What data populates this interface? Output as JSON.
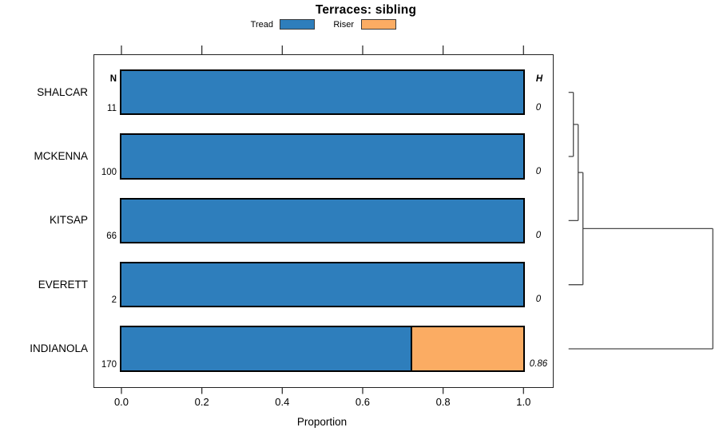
{
  "title": "Terraces: sibling",
  "legend": {
    "items": [
      {
        "label": "Tread",
        "color": "#2E7EBC"
      },
      {
        "label": "Riser",
        "color": "#FBAC63"
      }
    ]
  },
  "columns": {
    "n_header": "N",
    "h_header": "H"
  },
  "xlabel": "Proportion",
  "chart_data": {
    "type": "bar",
    "orientation": "horizontal",
    "stacked": true,
    "title": "Terraces: sibling",
    "xlabel": "Proportion",
    "xlim": [
      0,
      1
    ],
    "xticks": [
      0,
      0.2,
      0.4,
      0.6,
      0.8,
      1.0
    ],
    "xtick_labels": [
      "0.0",
      "0.2",
      "0.4",
      "0.6",
      "0.8",
      "1.0"
    ],
    "grid": false,
    "legend_position": "top",
    "categories": [
      "SHALCAR",
      "MCKENNA",
      "KITSAP",
      "EVERETT",
      "INDIANOLA"
    ],
    "n_values": [
      11,
      100,
      66,
      2,
      170
    ],
    "h_values": [
      "0",
      "0",
      "0",
      "0",
      "0.86"
    ],
    "series": [
      {
        "name": "Tread",
        "color": "#2E7EBC",
        "values": [
          1.0,
          1.0,
          1.0,
          1.0,
          0.72
        ]
      },
      {
        "name": "Riser",
        "color": "#FBAC63",
        "values": [
          0.0,
          0.0,
          0.0,
          0.0,
          0.28
        ]
      }
    ],
    "dendrogram": {
      "leaf_order": [
        "SHALCAR",
        "MCKENNA",
        "KITSAP",
        "EVERETT",
        "INDIANOLA"
      ],
      "merges": [
        {
          "children": [
            "SHALCAR",
            "MCKENNA"
          ],
          "height": 0
        },
        {
          "children": [
            "m0",
            "KITSAP"
          ],
          "height": 0
        },
        {
          "children": [
            "m1",
            "EVERETT"
          ],
          "height": 0
        },
        {
          "children": [
            "m2",
            "INDIANOLA"
          ],
          "height": 0.86
        }
      ],
      "max_height": 0.86
    }
  }
}
